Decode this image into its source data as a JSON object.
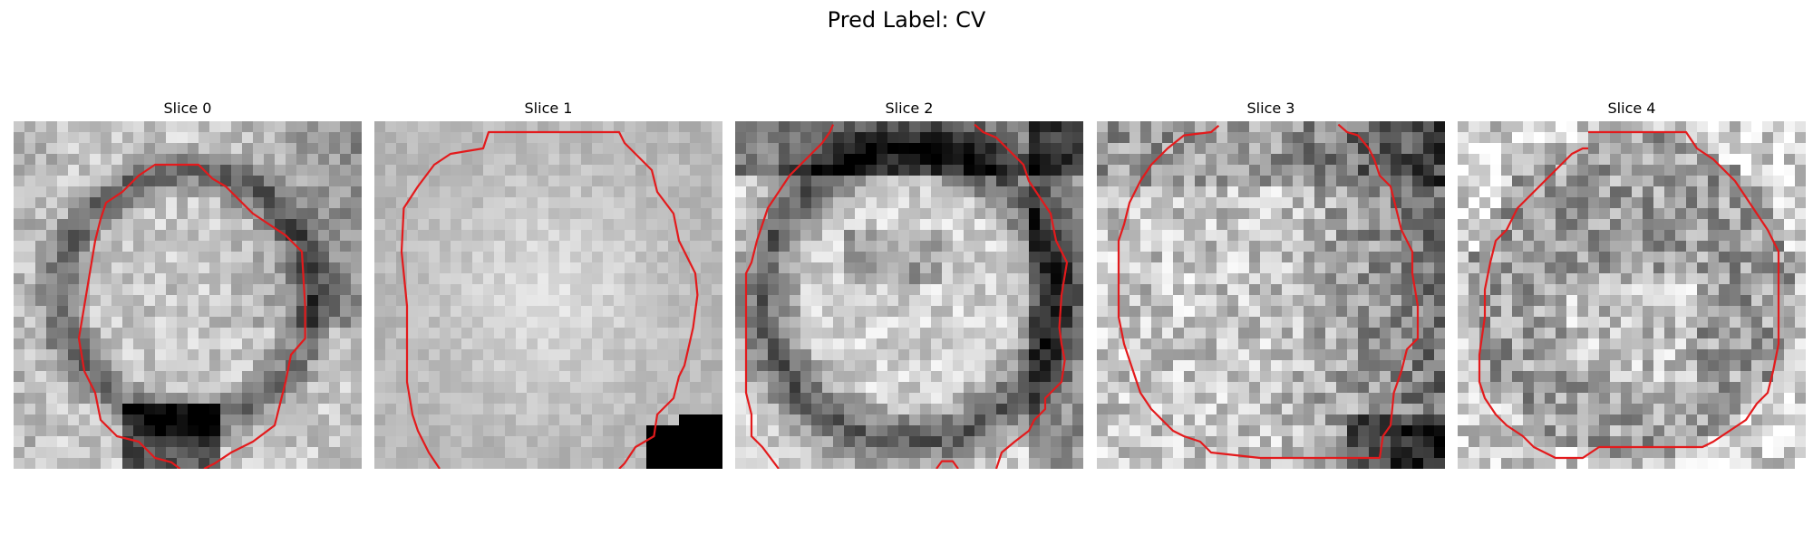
{
  "figure": {
    "title": "Pred Label: CV"
  },
  "slices": [
    {
      "title": "Slice 0",
      "contour_color": "#e31a1c",
      "pattern": "ring-dark-lower-right"
    },
    {
      "title": "Slice 1",
      "contour_color": "#e31a1c",
      "pattern": "bright-disc"
    },
    {
      "title": "Slice 2",
      "contour_color": "#e31a1c",
      "pattern": "dark-ring-bright-center"
    },
    {
      "title": "Slice 3",
      "contour_color": "#e31a1c",
      "pattern": "noisy-bright-left"
    },
    {
      "title": "Slice 4",
      "contour_color": "#e31a1c",
      "pattern": "noisy-dark-disc"
    }
  ]
}
